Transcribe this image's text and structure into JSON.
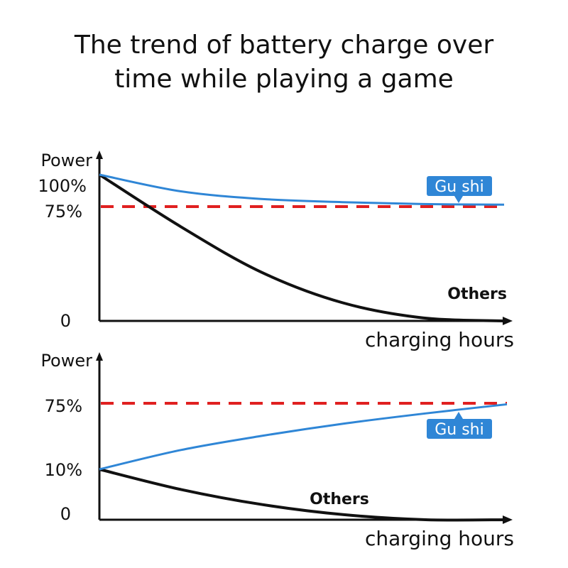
{
  "title_line1": "The trend of battery charge over",
  "title_line2": "time while playing a game",
  "chart_data": [
    {
      "type": "line",
      "ylabel": "Power",
      "xlabel": "charging hours",
      "yticks": [
        "100%",
        "75%",
        "0"
      ],
      "ylim": [
        0,
        100
      ],
      "threshold": 75,
      "series": [
        {
          "name": "Gu shi",
          "color": "#2f86d6",
          "x": [
            0,
            1,
            2,
            3,
            4,
            5
          ],
          "y": [
            100,
            87,
            81,
            78.5,
            77,
            76.5
          ]
        },
        {
          "name": "Others",
          "color": "#111111",
          "x": [
            0,
            1,
            2,
            3,
            4,
            5
          ],
          "y": [
            100,
            62,
            32,
            12,
            2,
            0
          ]
        }
      ],
      "threshold_color": "#e02020"
    },
    {
      "type": "line",
      "ylabel": "Power",
      "xlabel": "charging hours",
      "yticks": [
        "75%",
        "10%",
        "0"
      ],
      "ylim": [
        0,
        100
      ],
      "threshold": 75,
      "series": [
        {
          "name": "Gu shi",
          "color": "#2f86d6",
          "x": [
            0,
            1,
            2,
            3,
            4,
            5
          ],
          "y": [
            10,
            29,
            43,
            55,
            65,
            74
          ]
        },
        {
          "name": "Others",
          "color": "#111111",
          "x": [
            0,
            1,
            2,
            3,
            4,
            5
          ],
          "y": [
            10,
            6,
            3,
            1,
            0,
            0
          ]
        }
      ],
      "threshold_color": "#e02020"
    }
  ]
}
